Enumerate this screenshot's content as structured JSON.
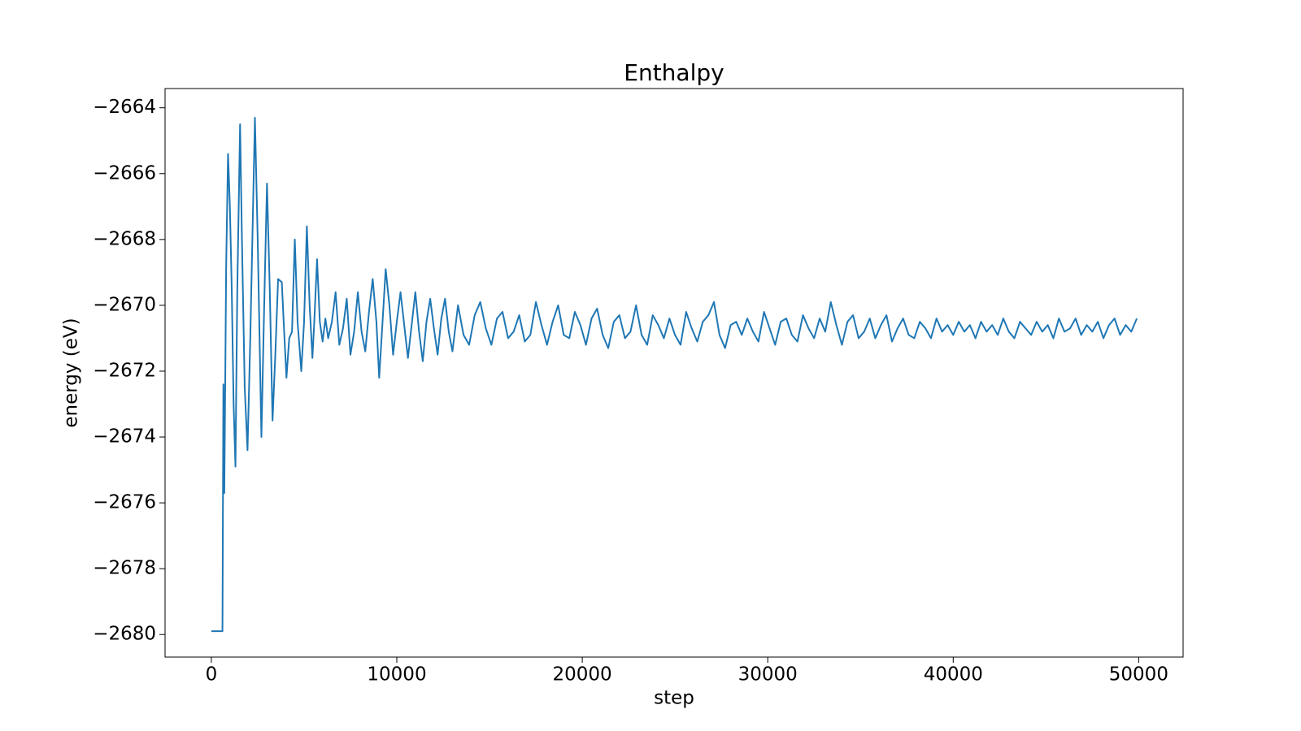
{
  "chart_data": {
    "type": "line",
    "title": "Enthalpy",
    "xlabel": "step",
    "ylabel": "energy (eV)",
    "color": "#1f77b4",
    "x": [
      0,
      600,
      650,
      700,
      800,
      900,
      1000,
      1100,
      1200,
      1300,
      1400,
      1550,
      1650,
      1800,
      1950,
      2100,
      2350,
      2500,
      2700,
      2850,
      3000,
      3150,
      3300,
      3450,
      3600,
      3800,
      3900,
      4050,
      4200,
      4350,
      4500,
      4650,
      4850,
      5000,
      5150,
      5300,
      5450,
      5550,
      5700,
      5850,
      6000,
      6150,
      6300,
      6500,
      6700,
      6900,
      7100,
      7300,
      7500,
      7700,
      7900,
      8100,
      8300,
      8500,
      8700,
      8900,
      9050,
      9200,
      9400,
      9600,
      9800,
      10000,
      10200,
      10400,
      10600,
      10800,
      11000,
      11200,
      11400,
      11600,
      11800,
      12000,
      12200,
      12400,
      12600,
      12800,
      13000,
      13300,
      13600,
      13900,
      14200,
      14500,
      14800,
      15100,
      15400,
      15700,
      16000,
      16300,
      16600,
      16900,
      17200,
      17500,
      17800,
      18100,
      18400,
      18700,
      19000,
      19300,
      19600,
      19900,
      20200,
      20500,
      20800,
      21100,
      21400,
      21700,
      22000,
      22300,
      22600,
      22900,
      23200,
      23500,
      23800,
      24100,
      24400,
      24700,
      25000,
      25300,
      25600,
      25900,
      26200,
      26500,
      26800,
      27100,
      27400,
      27700,
      28000,
      28300,
      28600,
      28900,
      29200,
      29500,
      29800,
      30100,
      30400,
      30700,
      31000,
      31300,
      31600,
      31900,
      32200,
      32500,
      32800,
      33100,
      33400,
      33700,
      34000,
      34300,
      34600,
      34900,
      35200,
      35500,
      35800,
      36100,
      36400,
      36700,
      37000,
      37300,
      37600,
      37900,
      38200,
      38500,
      38800,
      39100,
      39400,
      39700,
      40000,
      40300,
      40600,
      40900,
      41200,
      41500,
      41800,
      42100,
      42400,
      42700,
      43000,
      43300,
      43600,
      43900,
      44200,
      44500,
      44800,
      45100,
      45400,
      45700,
      46000,
      46300,
      46600,
      46900,
      47200,
      47500,
      47800,
      48100,
      48400,
      48700,
      49000,
      49300,
      49600,
      49900
    ],
    "values": [
      -2679.9,
      -2679.9,
      -2672.4,
      -2675.7,
      -2668.8,
      -2665.4,
      -2667.0,
      -2669.5,
      -2673.0,
      -2674.9,
      -2669.5,
      -2664.5,
      -2668.0,
      -2672.5,
      -2674.4,
      -2671.0,
      -2664.3,
      -2668.0,
      -2674.0,
      -2670.0,
      -2666.3,
      -2669.5,
      -2673.5,
      -2671.5,
      -2669.2,
      -2669.3,
      -2670.5,
      -2672.2,
      -2671.0,
      -2670.8,
      -2668.0,
      -2670.5,
      -2672.0,
      -2670.5,
      -2667.6,
      -2670.0,
      -2671.6,
      -2670.5,
      -2668.6,
      -2670.5,
      -2671.1,
      -2670.4,
      -2671.0,
      -2670.5,
      -2669.6,
      -2671.2,
      -2670.7,
      -2669.8,
      -2671.5,
      -2670.8,
      -2669.6,
      -2670.8,
      -2671.4,
      -2670.2,
      -2669.2,
      -2670.5,
      -2672.2,
      -2670.8,
      -2668.9,
      -2670.0,
      -2671.5,
      -2670.5,
      -2669.6,
      -2670.6,
      -2671.6,
      -2670.6,
      -2669.6,
      -2670.8,
      -2671.7,
      -2670.5,
      -2669.8,
      -2670.7,
      -2671.5,
      -2670.4,
      -2669.8,
      -2670.8,
      -2671.4,
      -2670.0,
      -2670.9,
      -2671.2,
      -2670.3,
      -2669.9,
      -2670.7,
      -2671.2,
      -2670.4,
      -2670.2,
      -2671.0,
      -2670.8,
      -2670.3,
      -2671.1,
      -2670.9,
      -2669.9,
      -2670.6,
      -2671.2,
      -2670.5,
      -2670.0,
      -2670.9,
      -2671.0,
      -2670.2,
      -2670.6,
      -2671.2,
      -2670.4,
      -2670.1,
      -2670.9,
      -2671.3,
      -2670.5,
      -2670.3,
      -2671.0,
      -2670.8,
      -2670.0,
      -2670.9,
      -2671.2,
      -2670.3,
      -2670.6,
      -2671.0,
      -2670.4,
      -2670.9,
      -2671.2,
      -2670.2,
      -2670.7,
      -2671.1,
      -2670.5,
      -2670.3,
      -2669.9,
      -2670.9,
      -2671.3,
      -2670.6,
      -2670.5,
      -2670.9,
      -2670.4,
      -2670.8,
      -2671.1,
      -2670.2,
      -2670.7,
      -2671.2,
      -2670.5,
      -2670.4,
      -2670.9,
      -2671.1,
      -2670.3,
      -2670.7,
      -2671.0,
      -2670.4,
      -2670.8,
      -2669.9,
      -2670.6,
      -2671.2,
      -2670.5,
      -2670.3,
      -2671.0,
      -2670.8,
      -2670.4,
      -2671.0,
      -2670.6,
      -2670.3,
      -2671.1,
      -2670.7,
      -2670.4,
      -2670.9,
      -2671.0,
      -2670.5,
      -2670.7,
      -2671.0,
      -2670.4,
      -2670.8,
      -2670.6,
      -2670.9,
      -2670.5,
      -2670.8,
      -2670.6,
      -2671.0,
      -2670.5,
      -2670.8,
      -2670.6,
      -2670.9,
      -2670.4,
      -2670.8,
      -2671.0,
      -2670.5,
      -2670.7,
      -2670.9,
      -2670.5,
      -2670.8,
      -2670.6,
      -2671.0,
      -2670.4,
      -2670.8,
      -2670.7,
      -2670.4,
      -2670.9,
      -2670.6,
      -2670.8,
      -2670.5,
      -2671.0,
      -2670.6,
      -2670.4,
      -2670.9,
      -2670.6,
      -2670.8,
      -2670.4
    ],
    "xlim": [
      -2495,
      52395
    ],
    "ylim": [
      -2680.685,
      -2663.415
    ],
    "xticks": [
      0,
      10000,
      20000,
      30000,
      40000,
      50000
    ],
    "yticks": [
      {
        "value": -2680,
        "label": "−2680"
      },
      {
        "value": -2678,
        "label": "−2678"
      },
      {
        "value": -2676,
        "label": "−2676"
      },
      {
        "value": -2674,
        "label": "−2674"
      },
      {
        "value": -2672,
        "label": "−2672"
      },
      {
        "value": -2670,
        "label": "−2670"
      },
      {
        "value": -2668,
        "label": "−2668"
      },
      {
        "value": -2666,
        "label": "−2666"
      },
      {
        "value": -2664,
        "label": "−2664"
      }
    ]
  }
}
